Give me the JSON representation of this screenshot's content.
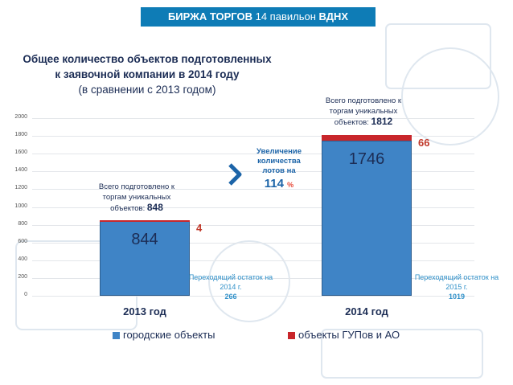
{
  "header": {
    "bold": "БИРЖА ТОРГОВ",
    "rest": "14 павильон",
    "bold2": "ВДНХ"
  },
  "title": {
    "line1": "Общее количество объектов подготовленных",
    "line2": "к заявочной компании в 2014 году",
    "line3": "(в сравнении с 2013 годом)"
  },
  "annotations": {
    "total_label": "Всего подготовлено к торгам уникальных объектов:",
    "total_2013": "848",
    "total_2014": "1812",
    "increase_label": "Увеличение количества лотов на",
    "increase_value": "114",
    "increase_unit": "%",
    "carry_2014_label": "Переходящий остаток на 2014 г.",
    "carry_2014_value": "266",
    "carry_2015_label": "Переходящий остаток на 2015 г.",
    "carry_2015_value": "1019"
  },
  "colors": {
    "header": "#0e7cb6",
    "city": "#3f84c6",
    "gup": "#c8262b"
  },
  "chart_data": {
    "type": "bar",
    "stacked": true,
    "categories": [
      "2013 год",
      "2014 год"
    ],
    "series": [
      {
        "name": "городские объекты",
        "values": [
          844,
          1746
        ]
      },
      {
        "name": "объекты ГУПов и АО",
        "values": [
          4,
          66
        ]
      }
    ],
    "ylim": [
      0,
      2000
    ],
    "yticks": [
      "0",
      "200",
      "400",
      "600",
      "800",
      "1000",
      "1200",
      "1400",
      "1600",
      "1800",
      "2000"
    ],
    "grid": true,
    "legend_position": "bottom"
  }
}
